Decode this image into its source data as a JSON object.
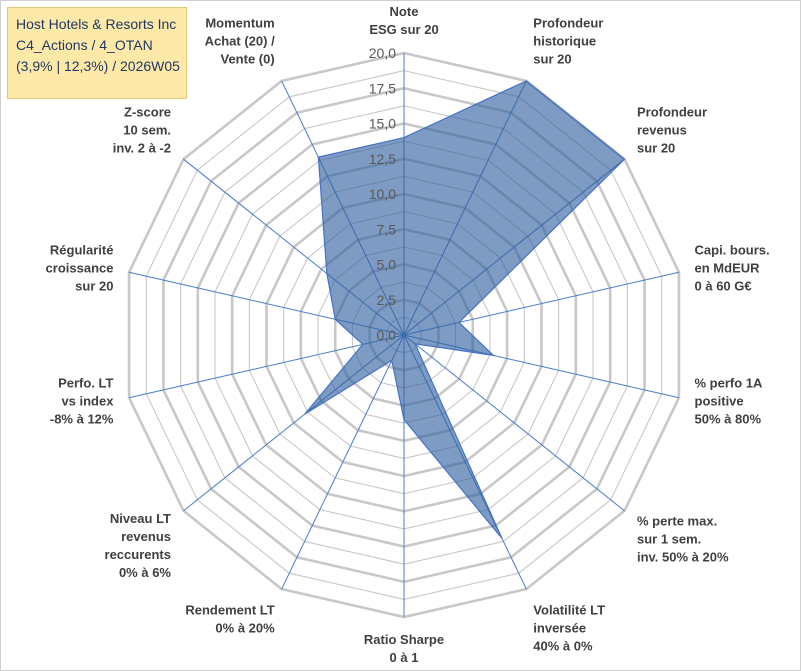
{
  "chart_data": {
    "type": "radar",
    "title_lines": [
      "Host Hotels & Resorts Inc",
      "C4_Actions / 4_OTAN",
      "(3,9% | 12,3%) / 2026W05"
    ],
    "scale": {
      "min": 0,
      "max": 20,
      "step": 2.5
    },
    "tick_labels": [
      "0,0",
      "2,5",
      "5,0",
      "7,5",
      "10,0",
      "12,5",
      "15,0",
      "17,5",
      "20,0"
    ],
    "axes": [
      {
        "lines": [
          "Note",
          "ESG sur 20"
        ]
      },
      {
        "lines": [
          "Profondeur",
          "historique",
          "sur 20"
        ]
      },
      {
        "lines": [
          "Profondeur",
          "revenus",
          "sur 20"
        ]
      },
      {
        "lines": [
          "Capi. bours.",
          "en MdEUR",
          "0 à 60 G€"
        ]
      },
      {
        "lines": [
          "% perfo 1A",
          "positive",
          "50% à 80%"
        ]
      },
      {
        "lines": [
          "% perte max.",
          "sur 1 sem.",
          "inv. 50% à 20%"
        ]
      },
      {
        "lines": [
          "Volatilité LT",
          "inversée",
          "40% à 0%"
        ]
      },
      {
        "lines": [
          "Ratio Sharpe",
          "0 à 1"
        ]
      },
      {
        "lines": [
          "Rendement LT",
          "0% à 20%"
        ]
      },
      {
        "lines": [
          "Niveau LT",
          "revenus",
          "reccurents",
          "0% à 6%"
        ]
      },
      {
        "lines": [
          "Perfo. LT",
          "vs index",
          "-8% à 12%"
        ]
      },
      {
        "lines": [
          "Régularité",
          "croissance",
          "sur 20"
        ]
      },
      {
        "lines": [
          "Z-score",
          "10 sem.",
          "inv. 2 à -2"
        ]
      },
      {
        "lines": [
          "Momentum",
          "Achat (20) /",
          "Vente (0)"
        ]
      }
    ],
    "series": [
      {
        "name": "Host Hotels & Resorts Inc",
        "values": [
          14.0,
          20.0,
          20.0,
          4.0,
          6.5,
          1.0,
          16.0,
          6.0,
          2.0,
          9.0,
          3.0,
          5.0,
          7.0,
          14.0
        ]
      }
    ],
    "colors": {
      "fill": "#2e5f9e",
      "outline": "#4472c4",
      "grid": "#c8c8c8",
      "spoke": "#4a7cc9",
      "title_bg": "#ffe9a8",
      "title_text": "#1f3864"
    }
  }
}
